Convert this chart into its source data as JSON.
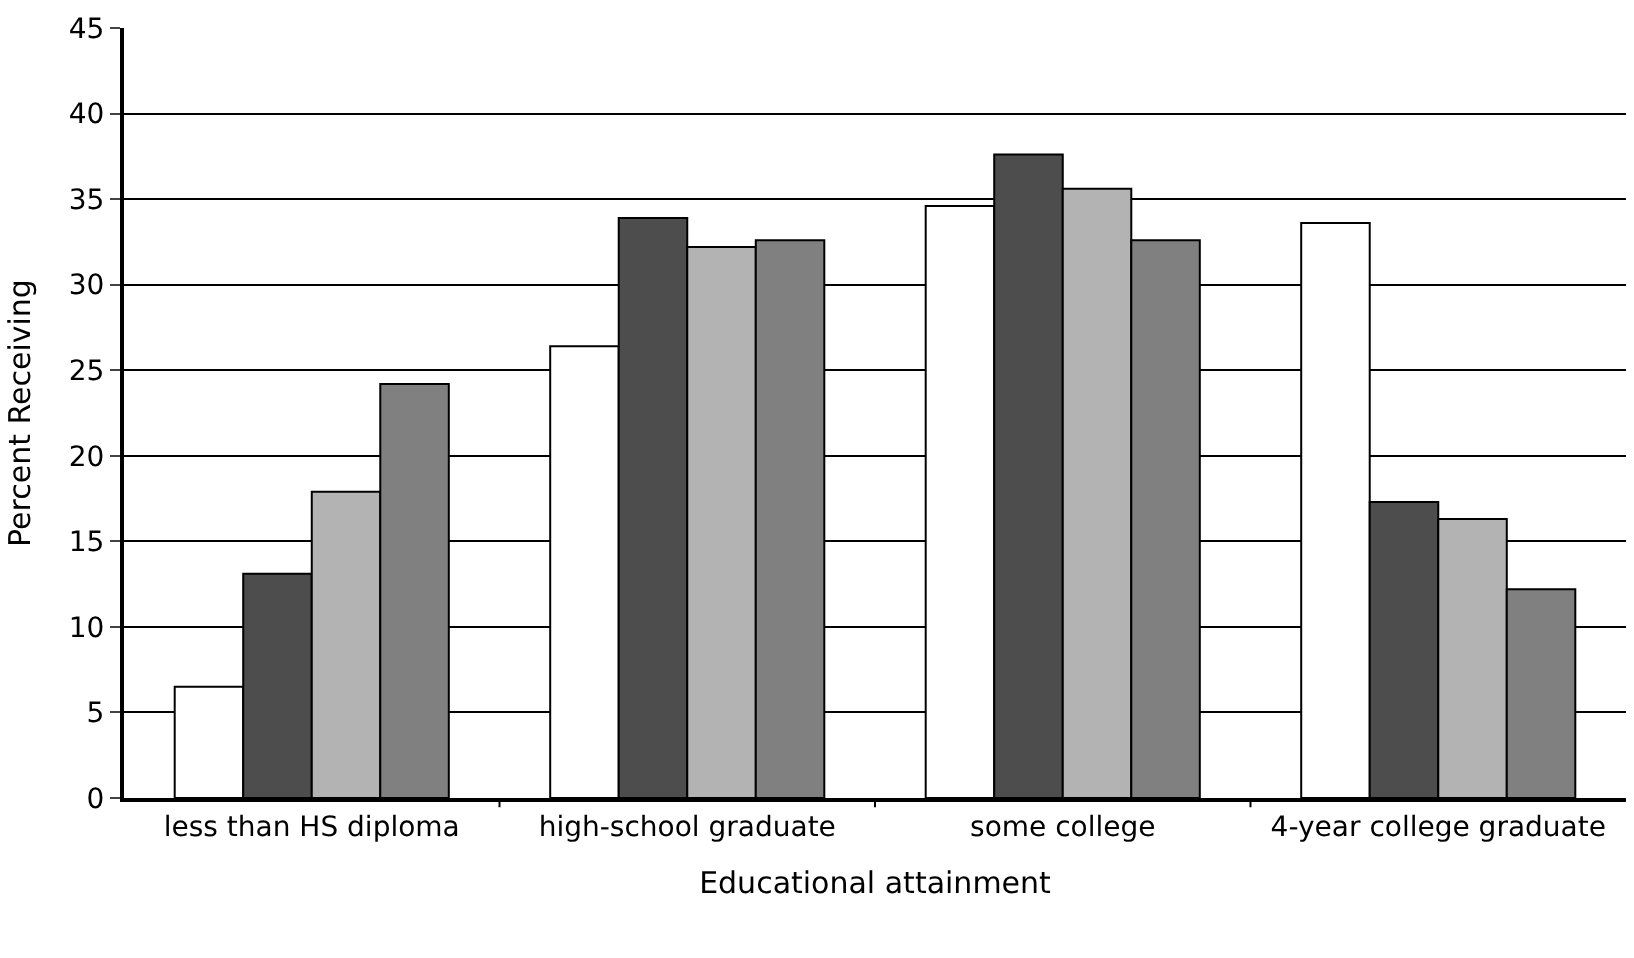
{
  "chart_data": {
    "type": "bar",
    "xlabel": "Educational attainment",
    "ylabel": "Percent Receiving",
    "categories": [
      "less than HS diploma",
      "high-school graduate",
      "some college",
      "4-year college graduate"
    ],
    "series": [
      {
        "color": "#ffffff",
        "values": [
          6.5,
          26.4,
          34.6,
          33.6
        ]
      },
      {
        "color": "#4d4d4d",
        "values": [
          13.1,
          33.9,
          37.6,
          17.3
        ]
      },
      {
        "color": "#b3b3b3",
        "values": [
          17.9,
          32.2,
          35.6,
          16.3
        ]
      },
      {
        "color": "#808080",
        "values": [
          24.2,
          32.6,
          32.6,
          12.2
        ]
      }
    ],
    "ylim": [
      0,
      45
    ],
    "yticks": [
      0,
      5,
      10,
      15,
      20,
      25,
      30,
      35,
      40,
      45
    ],
    "grid": "y"
  }
}
